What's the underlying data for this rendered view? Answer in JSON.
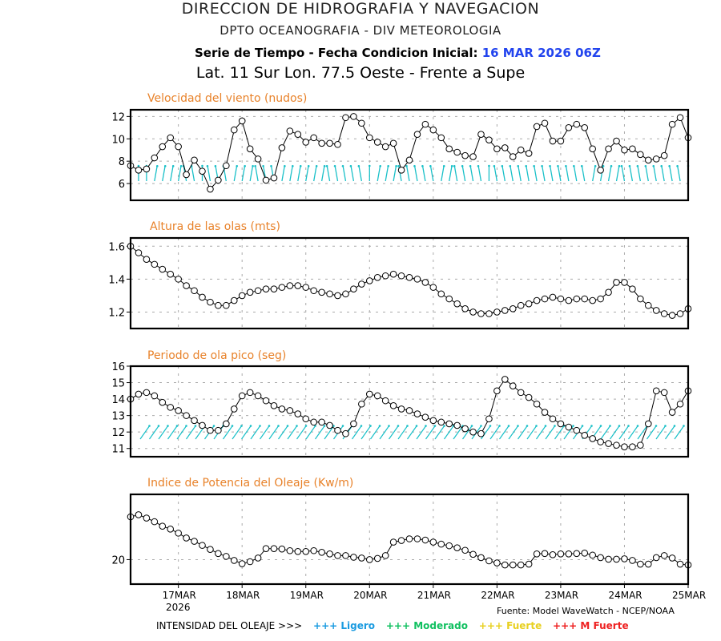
{
  "header": {
    "line1": "DIRECCION DE HIDROGRAFIA Y NAVEGACION",
    "line2": "DPTO OCEANOGRAFIA - DIV METEOROLOGIA",
    "line3_prefix": "Serie de Tiempo - Fecha Condicion Inicial:",
    "line3_date": "16 MAR 2026 06Z",
    "line4": "Lat. 11 Sur  Lon. 77.5 Oeste - Frente a Supe"
  },
  "colors": {
    "title": "#e8822a",
    "date": "#2244ee",
    "arrow": "#19c0c8",
    "ligero": "#1a9be0",
    "moderado": "#10c060",
    "fuerte": "#e8d020",
    "mfuerte": "#ee2020"
  },
  "x_axis": {
    "start": "16MAR2026 06Z",
    "step_hours": 3,
    "tick_labels": [
      "17MAR",
      "18MAR",
      "19MAR",
      "20MAR",
      "21MAR",
      "22MAR",
      "23MAR",
      "24MAR",
      "25MAR"
    ],
    "year_label": "2026"
  },
  "footer": {
    "source": "Fuente: Model WaveWatch - NCEP/NOAA",
    "legend_label": "INTENSIDAD DEL OLEAJE >>>",
    "legend_items": [
      "+++ Ligero",
      "+++ Moderado",
      "+++ Fuerte",
      "+++ M Fuerte"
    ]
  },
  "chart_data": [
    {
      "type": "line",
      "title": "Velocidad del viento (nudos)",
      "ylim": [
        4.5,
        12.6
      ],
      "yticks": [
        6,
        8,
        10,
        12
      ],
      "ytick_labels": [
        "6",
        "8",
        "10",
        "12"
      ],
      "grid": true,
      "values": [
        7.6,
        7.2,
        7.3,
        8.3,
        9.3,
        10.1,
        9.3,
        6.8,
        8.1,
        7.1,
        5.5,
        6.3,
        7.6,
        10.8,
        11.6,
        9.1,
        8.2,
        6.3,
        6.5,
        9.2,
        10.7,
        10.4,
        9.7,
        10.1,
        9.6,
        9.6,
        9.5,
        11.9,
        12.0,
        11.4,
        10.1,
        9.7,
        9.3,
        9.6,
        7.2,
        8.1,
        10.4,
        11.3,
        10.8,
        10.1,
        9.1,
        8.8,
        8.5,
        8.4,
        10.4,
        9.9,
        9.1,
        9.2,
        8.4,
        9.0,
        8.7,
        11.1,
        11.4,
        9.8,
        9.8,
        11.0,
        11.3,
        11.0,
        9.1,
        7.2,
        9.1,
        9.8,
        9.0,
        9.1,
        8.6,
        8.1,
        8.2,
        8.5,
        11.3,
        11.9,
        10.1
      ],
      "arrow_tilt_deg": [
        -10,
        0,
        0,
        10,
        10,
        10,
        10,
        -10,
        -10,
        0,
        -10,
        -10,
        -10,
        10,
        10,
        10,
        -10,
        -10,
        -10,
        10,
        10,
        10,
        10,
        10,
        10,
        -10,
        -10,
        -10,
        -10,
        -10,
        0,
        10,
        10,
        10,
        -10,
        -10,
        -10,
        -10,
        -10,
        10,
        10,
        -10,
        -10,
        -10,
        -10,
        0,
        -10,
        -10,
        -10,
        -10,
        -10,
        -10,
        -10,
        -10,
        -10,
        -10,
        -10,
        -10,
        10,
        10,
        10,
        10,
        -10,
        -10,
        -10,
        -10,
        -10,
        -10,
        -10,
        -10,
        0
      ]
    },
    {
      "type": "line",
      "title": "Altura de las olas (mts)",
      "ylim": [
        1.1,
        1.65
      ],
      "yticks": [
        1.2,
        1.4,
        1.6
      ],
      "ytick_labels": [
        "1.2",
        "1.4",
        "1.6"
      ],
      "grid": true,
      "values": [
        1.6,
        1.56,
        1.52,
        1.49,
        1.46,
        1.43,
        1.4,
        1.36,
        1.33,
        1.29,
        1.26,
        1.24,
        1.24,
        1.27,
        1.3,
        1.32,
        1.33,
        1.34,
        1.34,
        1.35,
        1.36,
        1.36,
        1.35,
        1.33,
        1.32,
        1.31,
        1.3,
        1.31,
        1.34,
        1.37,
        1.39,
        1.41,
        1.42,
        1.43,
        1.42,
        1.41,
        1.4,
        1.38,
        1.35,
        1.31,
        1.28,
        1.25,
        1.22,
        1.2,
        1.19,
        1.19,
        1.2,
        1.21,
        1.22,
        1.24,
        1.25,
        1.27,
        1.28,
        1.29,
        1.28,
        1.27,
        1.28,
        1.28,
        1.27,
        1.28,
        1.32,
        1.38,
        1.38,
        1.34,
        1.28,
        1.24,
        1.21,
        1.19,
        1.18,
        1.19,
        1.22
      ]
    },
    {
      "type": "line",
      "title": "Periodo de ola pico (seg)",
      "ylim": [
        10.5,
        16
      ],
      "yticks": [
        11,
        12,
        13,
        14,
        15,
        16
      ],
      "ytick_labels": [
        "11",
        "12",
        "13",
        "14",
        "15",
        "16"
      ],
      "grid": true,
      "values": [
        14.0,
        14.3,
        14.4,
        14.2,
        13.8,
        13.5,
        13.3,
        13.0,
        12.7,
        12.4,
        12.1,
        12.1,
        12.5,
        13.4,
        14.2,
        14.4,
        14.2,
        13.9,
        13.6,
        13.4,
        13.3,
        13.1,
        12.8,
        12.6,
        12.6,
        12.4,
        12.1,
        11.9,
        12.5,
        13.7,
        14.3,
        14.2,
        13.9,
        13.6,
        13.4,
        13.3,
        13.1,
        12.9,
        12.7,
        12.6,
        12.5,
        12.4,
        12.2,
        12.0,
        11.9,
        12.8,
        14.5,
        15.2,
        14.8,
        14.4,
        14.1,
        13.7,
        13.2,
        12.8,
        12.5,
        12.3,
        12.1,
        11.8,
        11.6,
        11.4,
        11.3,
        11.2,
        11.1,
        11.1,
        11.2,
        12.5,
        14.5,
        14.4,
        13.2,
        13.7,
        14.5
      ]
    },
    {
      "type": "line",
      "title": "Indice de Potencia del Oleaje (Kw/m)",
      "ylim": [
        14,
        36
      ],
      "yticks": [
        20
      ],
      "ytick_labels": [
        "20"
      ],
      "grid": true,
      "values": [
        30.5,
        31.0,
        30.2,
        29.3,
        28.2,
        27.5,
        26.5,
        25.3,
        24.5,
        23.5,
        22.5,
        21.5,
        20.8,
        19.8,
        19.0,
        19.5,
        20.4,
        22.7,
        22.7,
        22.6,
        22.2,
        22.0,
        22.0,
        22.2,
        21.8,
        21.4,
        21.0,
        21.0,
        20.6,
        20.4,
        20.0,
        20.3,
        21.0,
        24.3,
        24.7,
        25.1,
        25.1,
        24.8,
        24.3,
        23.8,
        23.4,
        22.9,
        22.3,
        21.3,
        20.5,
        19.7,
        19.2,
        18.7,
        18.7,
        18.7,
        18.9,
        21.4,
        21.5,
        21.2,
        21.4,
        21.4,
        21.5,
        21.6,
        21.1,
        20.5,
        20.1,
        20.1,
        20.2,
        19.8,
        18.9,
        18.9,
        20.5,
        21.0,
        20.4,
        18.9,
        18.7
      ]
    }
  ],
  "panels_extra": {
    "period_arrow_count": 60
  }
}
